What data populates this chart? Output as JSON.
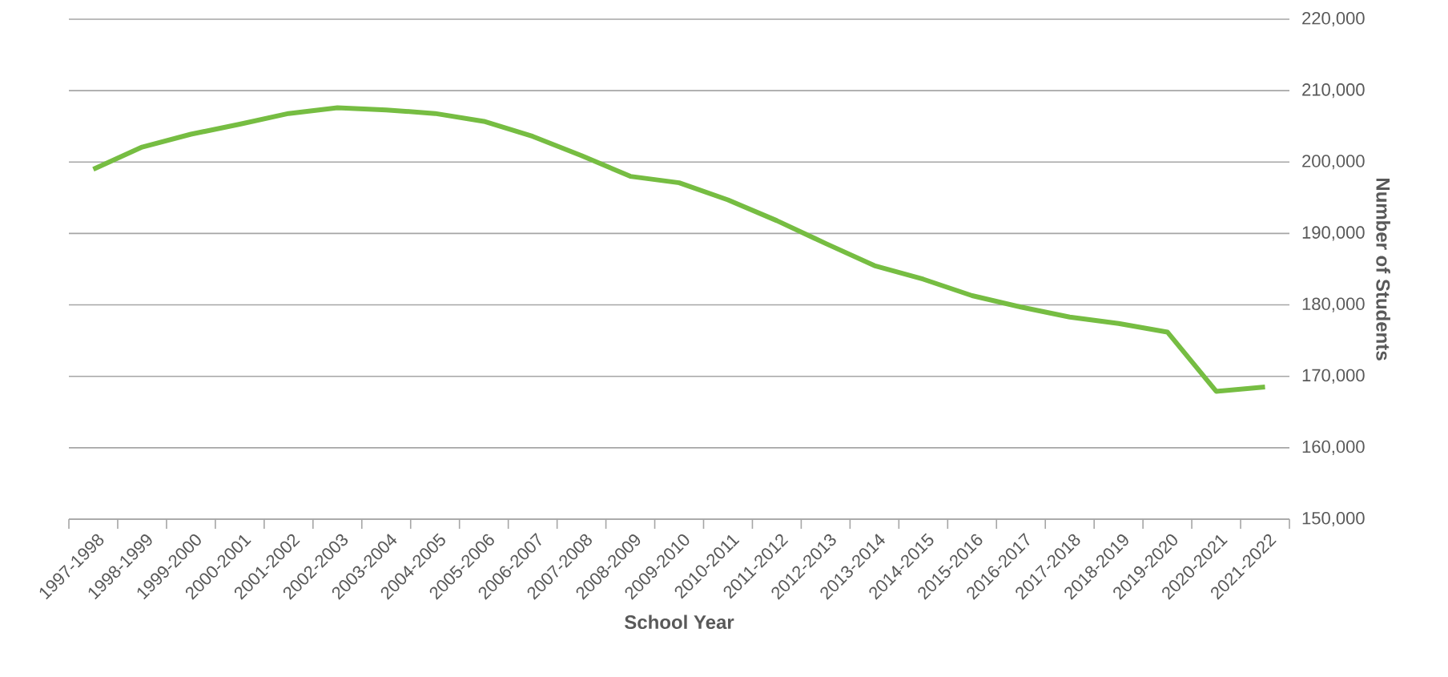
{
  "chart_data": {
    "type": "line",
    "xlabel": "School Year",
    "ylabel": "Number of Students",
    "categories": [
      "1997-1998",
      "1998-1999",
      "1999-2000",
      "2000-2001",
      "2001-2002",
      "2002-2003",
      "2003-2004",
      "2004-2005",
      "2005-2006",
      "2006-2007",
      "2007-2008",
      "2008-2009",
      "2009-2010",
      "2010-2011",
      "2011-2012",
      "2012-2013",
      "2013-2014",
      "2014-2015",
      "2015-2016",
      "2016-2017",
      "2017-2018",
      "2018-2019",
      "2019-2020",
      "2020-2021",
      "2021-2022"
    ],
    "values": [
      199000,
      202100,
      203900,
      205300,
      206800,
      207600,
      207300,
      206800,
      205700,
      203600,
      200900,
      198000,
      197100,
      194700,
      191800,
      188600,
      185500,
      183600,
      181300,
      179700,
      178300,
      177400,
      176200,
      167900,
      168500
    ],
    "color": "#76bd42",
    "ylim": [
      150000,
      220000
    ],
    "yticks": [
      {
        "value": 150000,
        "label": "150,000"
      },
      {
        "value": 160000,
        "label": "160,000"
      },
      {
        "value": 170000,
        "label": "170,000"
      },
      {
        "value": 180000,
        "label": "180,000"
      },
      {
        "value": 190000,
        "label": "190,000"
      },
      {
        "value": 200000,
        "label": "200,000"
      },
      {
        "value": 210000,
        "label": "210,000"
      },
      {
        "value": 220000,
        "label": "220,000"
      }
    ],
    "grid": "y"
  }
}
